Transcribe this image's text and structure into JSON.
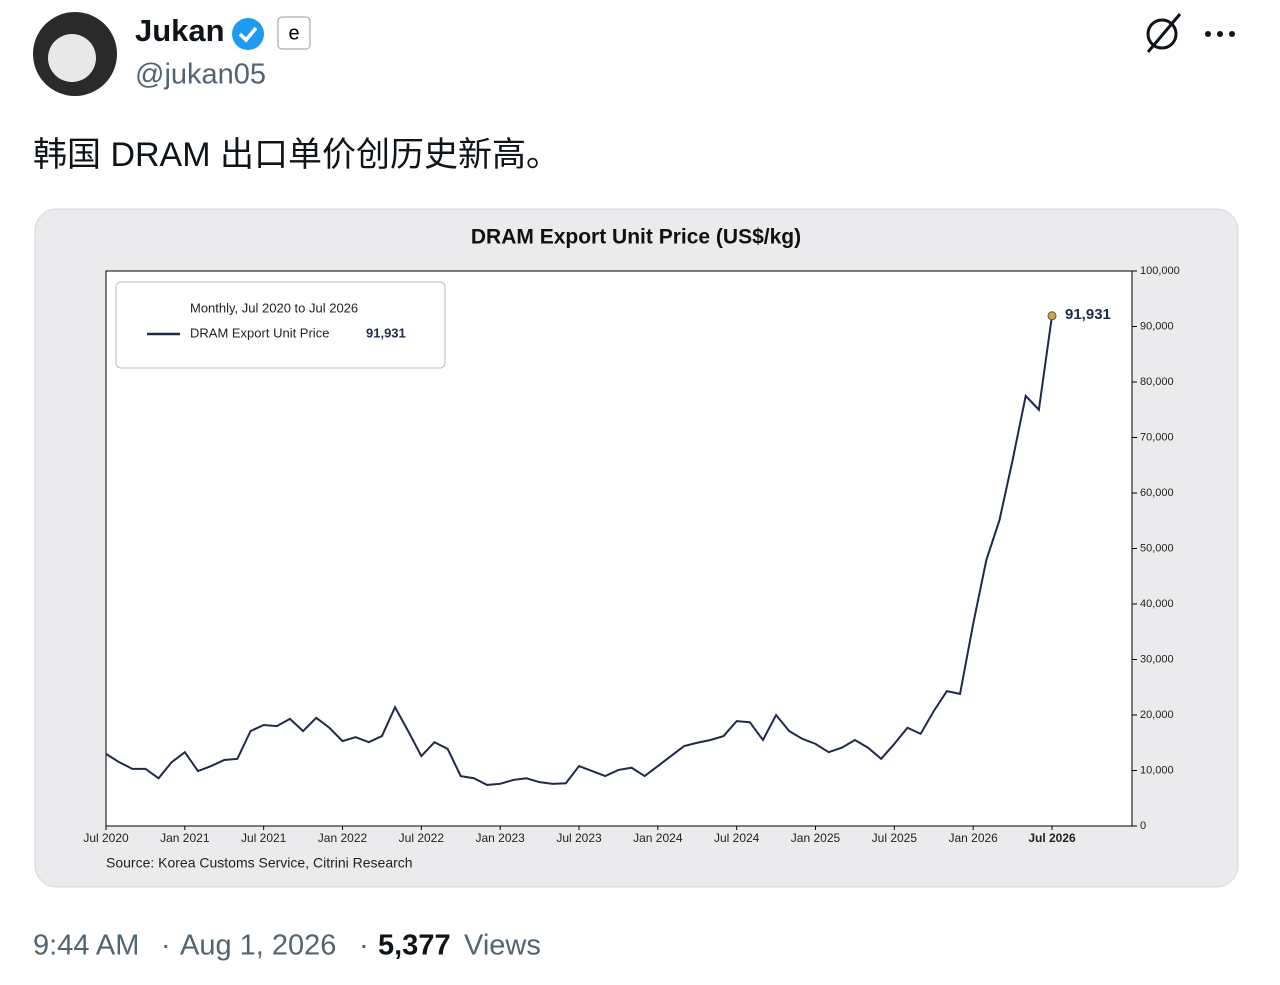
{
  "tweet": {
    "name": "Jukan",
    "handle": "@jukan05",
    "text": "韩国 DRAM 出口单价创历史新高。",
    "time": "9:44 AM",
    "separator": "·",
    "date": "Aug 1, 2026",
    "views": "5,377",
    "views_label": "Views"
  },
  "chart_data": {
    "type": "line",
    "title": "DRAM Export Unit Price (US$/kg)",
    "legend_title": "Monthly, Jul 2020 to Jul 2026",
    "source": "Source: Korea Customs Service, Citrini Research",
    "categories": [
      "Jul 2020",
      null,
      null,
      null,
      null,
      null,
      "Jan 2021",
      null,
      null,
      null,
      null,
      null,
      "Jul 2021",
      null,
      null,
      null,
      null,
      null,
      "Jan 2022",
      null,
      null,
      null,
      null,
      null,
      "Jul 2022",
      null,
      null,
      null,
      null,
      null,
      "Jan 2023",
      null,
      null,
      null,
      null,
      null,
      "Jul 2023",
      null,
      null,
      null,
      null,
      null,
      "Jan 2024",
      null,
      null,
      null,
      null,
      null,
      "Jul 2024",
      null,
      null,
      null,
      null,
      null,
      "Jan 2025",
      null,
      null,
      null,
      null,
      null,
      "Jul 2025",
      null,
      null,
      null,
      null,
      null,
      "Jan 2026",
      null,
      null,
      null,
      null,
      null,
      "Jul 2026"
    ],
    "series": [
      {
        "name": "DRAM Export Unit Price",
        "color": "#1f2a4a",
        "values": [
          13000,
          11500,
          10300,
          10300,
          8600,
          11500,
          13300,
          9900,
          10800,
          11900,
          12100,
          17100,
          18200,
          18000,
          19300,
          17100,
          19500,
          17700,
          15300,
          16000,
          15100,
          16200,
          21400,
          17100,
          12600,
          15100,
          13900,
          9000,
          8600,
          7400,
          7600,
          8300,
          8600,
          7900,
          7600,
          7700,
          10800,
          9900,
          9000,
          10100,
          10500,
          9000,
          10800,
          12600,
          14400,
          15000,
          15500,
          16200,
          18900,
          18700,
          15500,
          20000,
          17100,
          15700,
          14800,
          13300,
          14100,
          15500,
          14100,
          12100,
          14800,
          17700,
          16600,
          20700,
          24300,
          23800,
          36400,
          47900,
          55100,
          65900,
          77500,
          75000,
          91931
        ],
        "value_labels": [
          null,
          null,
          null,
          null,
          null,
          null,
          null,
          null,
          null,
          null,
          null,
          null,
          null,
          null,
          null,
          null,
          null,
          null,
          null,
          null,
          null,
          null,
          null,
          null,
          null,
          null,
          null,
          null,
          null,
          null,
          null,
          null,
          null,
          null,
          null,
          null,
          null,
          null,
          null,
          null,
          null,
          null,
          null,
          null,
          null,
          null,
          null,
          null,
          null,
          null,
          null,
          null,
          null,
          null,
          null,
          null,
          null,
          null,
          null,
          null,
          null,
          null,
          null,
          null,
          null,
          null,
          null,
          null,
          null,
          null,
          null,
          null,
          "91,931"
        ]
      }
    ],
    "ylim": [
      0,
      100000
    ],
    "yticks": [
      0,
      {
        "value": 10000,
        "label": "10,000"
      },
      {
        "value": 20000,
        "label": "20,000"
      },
      {
        "value": 30000,
        "label": "30,000"
      },
      {
        "value": 40000,
        "label": "40,000"
      },
      {
        "value": 50000,
        "label": "50,000"
      },
      {
        "value": 60000,
        "label": "60,000"
      },
      {
        "value": 70000,
        "label": "70,000"
      },
      {
        "value": 80000,
        "label": "80,000"
      },
      {
        "value": 90000,
        "label": "90,000"
      },
      {
        "value": 100000,
        "label": "100,000"
      }
    ],
    "y_axis_side": "right",
    "grid": false,
    "highlight_color": "#c9a646"
  }
}
